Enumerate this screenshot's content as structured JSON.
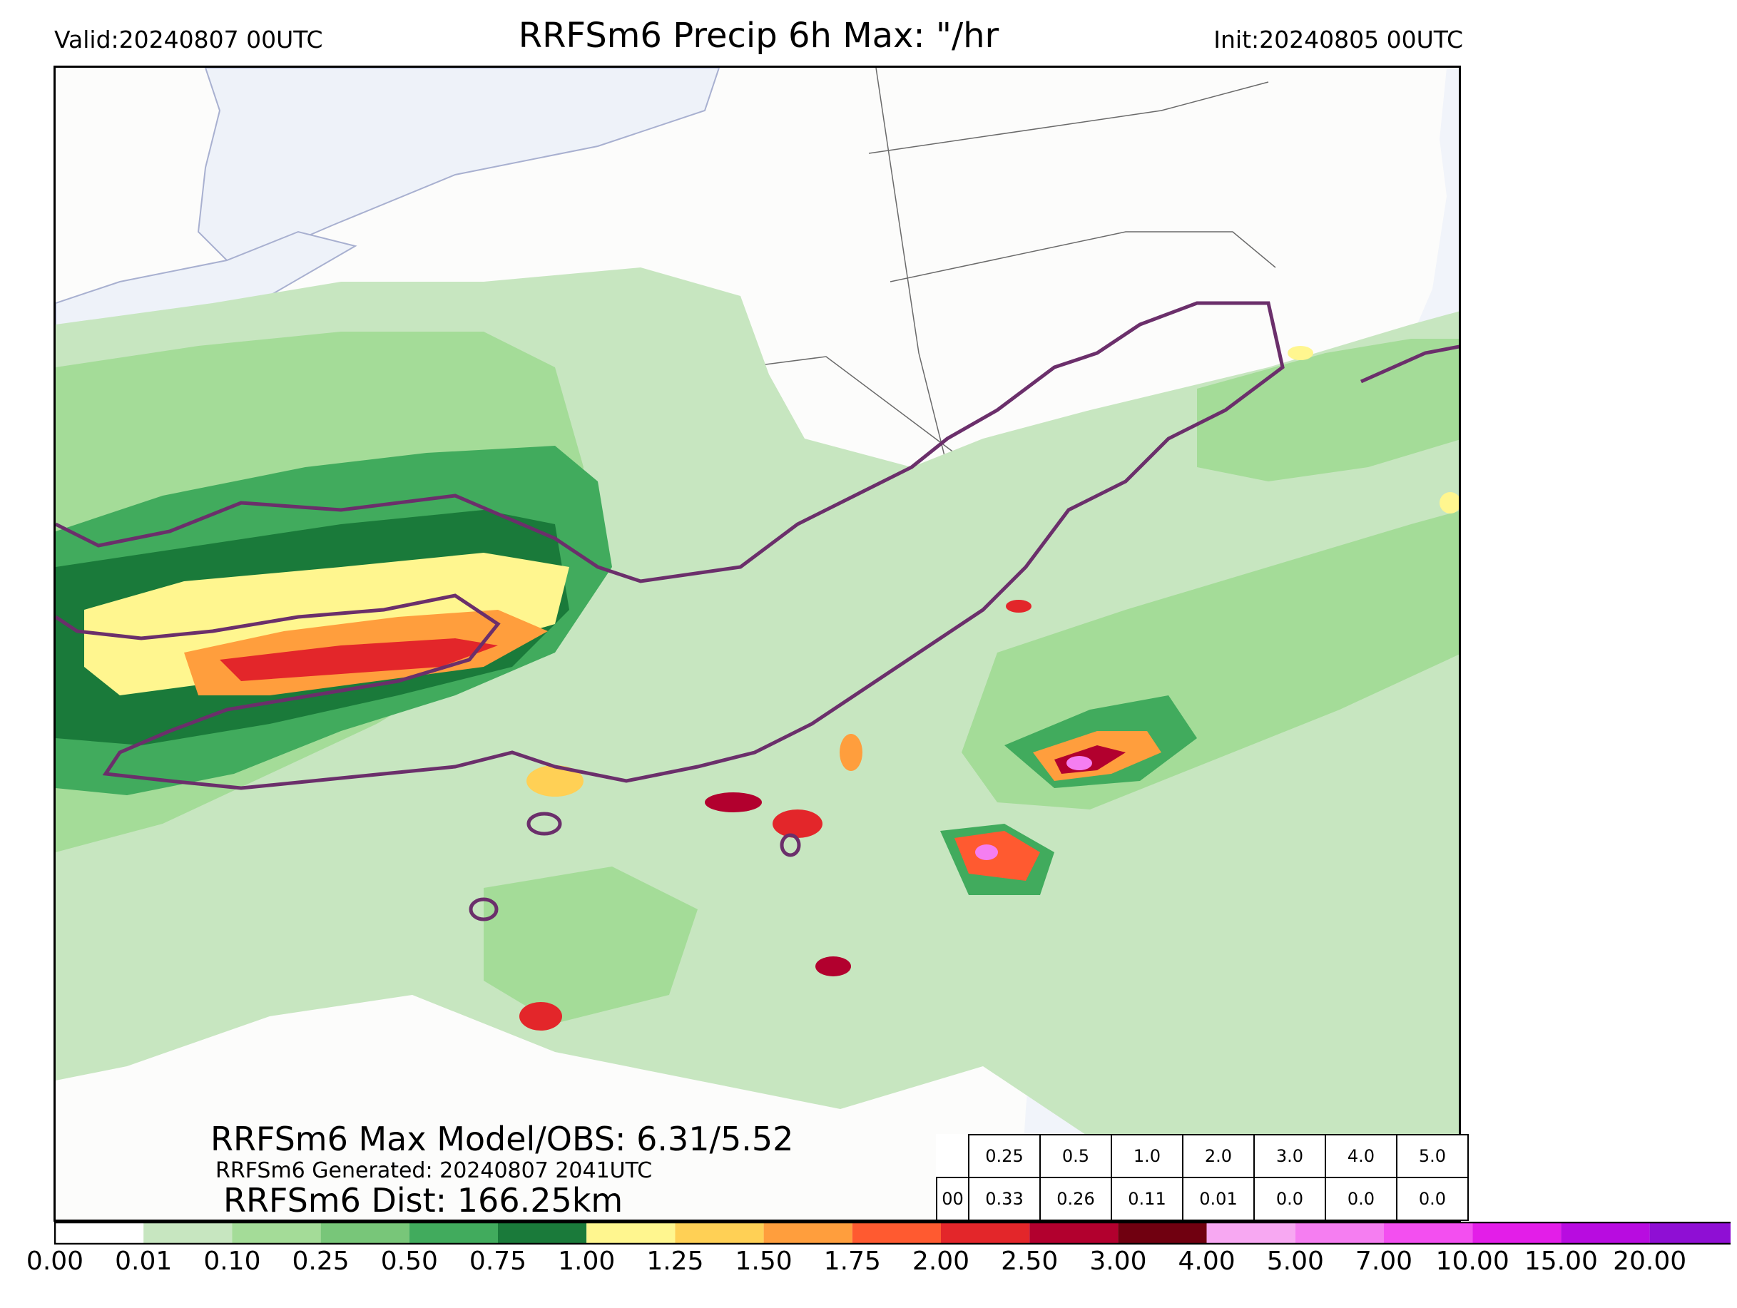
{
  "header": {
    "valid": "Valid:20240807 00UTC",
    "title": "RRFSm6 Precip 6h Max: \"/hr",
    "init": "Init:20240805 00UTC"
  },
  "stats": {
    "max_model_obs": "RRFSm6 Max Model/OBS: 6.31/5.52",
    "generated": "RRFSm6 Generated: 20240807 2041UTC",
    "distance": "RRFSm6 Dist: 166.25km"
  },
  "score_table": {
    "thresholds": [
      "0.25",
      "0.5",
      "1.0",
      "2.0",
      "3.0",
      "4.0",
      "5.0"
    ],
    "row_label": "00",
    "scores": [
      "0.33",
      "0.26",
      "0.11",
      "0.01",
      "0.0",
      "0.0",
      "0.0"
    ]
  },
  "colorbar": {
    "labels": [
      "0.00",
      "0.01",
      "0.10",
      "0.25",
      "0.50",
      "0.75",
      "1.00",
      "1.25",
      "1.50",
      "1.75",
      "2.00",
      "2.50",
      "3.00",
      "4.00",
      "5.00",
      "7.00",
      "10.00",
      "15.00",
      "20.00"
    ],
    "colors": [
      "#ffffff",
      "#c7e6c0",
      "#a4dc98",
      "#78c679",
      "#41ab5d",
      "#1a7a3a",
      "#fff68f",
      "#ffd055",
      "#ff9e3d",
      "#ff5a30",
      "#e3262a",
      "#b2002e",
      "#700010",
      "#f7a8f2",
      "#f57ef1",
      "#f34ff0",
      "#e31ee8",
      "#b80ce0",
      "#8f0fd4"
    ],
    "extend": "max"
  },
  "map": {
    "palette": {
      "ocean": "#f1f4fa",
      "land": "#fcfcfb",
      "border": "#6a6a6a",
      "obs_contour": "#6b2f6b"
    }
  }
}
